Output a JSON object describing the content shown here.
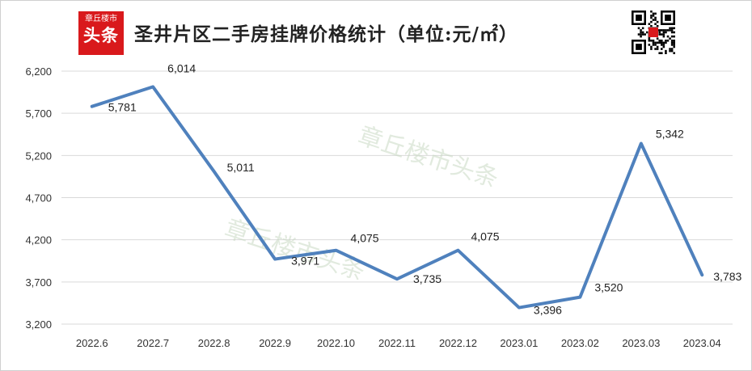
{
  "logo": {
    "top_text": "章丘楼市",
    "big_text": "头条"
  },
  "title": "圣井片区二手房挂牌价格统计（单位:元/㎡）",
  "watermark": "章丘楼市头条",
  "colors": {
    "line": "#4f81bd",
    "logo_bg": "#d9191c",
    "grid": "#d9d9d9"
  },
  "chart_data": {
    "type": "line",
    "title": "圣井片区二手房挂牌价格统计（单位:元/㎡）",
    "categories": [
      "2022.6",
      "2022.7",
      "2022.8",
      "2022.9",
      "2022.10",
      "2022.11",
      "2022.12",
      "2023.01",
      "2023.02",
      "2023.03",
      "2023.04"
    ],
    "values": [
      5781,
      6014,
      5011,
      3971,
      4075,
      3735,
      4075,
      3396,
      3520,
      5342,
      3783
    ],
    "data_labels": [
      "5,781",
      "6,014",
      "5,011",
      "3,971",
      "4,075",
      "3,735",
      "4,075",
      "3,396",
      "3,520",
      "5,342",
      "3,783"
    ],
    "ylim": [
      3200,
      6200
    ],
    "yticks": [
      3200,
      3700,
      4200,
      4700,
      5200,
      5700,
      6200
    ],
    "ytick_labels": [
      "3,200",
      "3,700",
      "4,200",
      "4,700",
      "5,200",
      "5,700",
      "6,200"
    ],
    "grid": true,
    "legend": "none"
  }
}
